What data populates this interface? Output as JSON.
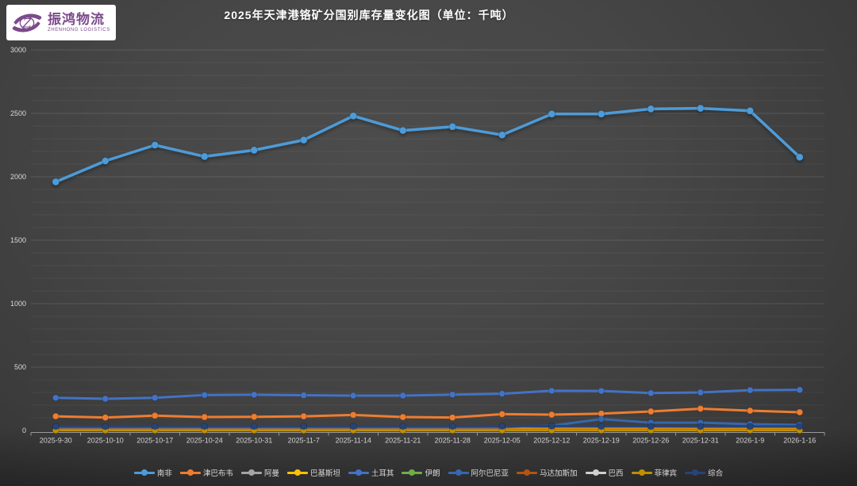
{
  "logo": {
    "brand_cn": "振鸿物流",
    "brand_en": "ZHENHONG LOGISTICS",
    "accent_color": "#7C4A8C"
  },
  "chart_data": {
    "type": "line",
    "title": "2025年天津港铬矿分国别库存量变化图（单位：千吨）",
    "xlabel": "",
    "ylabel": "",
    "ylim": [
      0,
      3000
    ],
    "y_major_step": 500,
    "y_minor_step": 100,
    "grid": true,
    "legend_position": "bottom",
    "categories": [
      "2025-9-30",
      "2025-10-10",
      "2025-10-17",
      "2025-10-24",
      "2025-10-31",
      "2025-11-7",
      "2025-11-14",
      "2025-11-21",
      "2025-11-28",
      "2025-12-05",
      "2025-12-12",
      "2025-12-19",
      "2025-12-26",
      "2025-12-31",
      "2026-1-9",
      "2026-1-16"
    ],
    "series": [
      {
        "name": "南非",
        "color": "#4E9BD8",
        "line_width": 3.5,
        "marker_r": 4.5,
        "shadow": true,
        "values": [
          1960,
          2125,
          2250,
          2160,
          2210,
          2290,
          2480,
          2365,
          2395,
          2330,
          2495,
          2495,
          2535,
          2540,
          2520,
          2155
        ]
      },
      {
        "name": "津巴布韦",
        "color": "#ED7D31",
        "line_width": 3,
        "marker_r": 4,
        "values": [
          112,
          102,
          117,
          106,
          108,
          112,
          123,
          106,
          102,
          129,
          125,
          133,
          150,
          172,
          156,
          144
        ]
      },
      {
        "name": "阿曼",
        "color": "#A5A5A5",
        "line_width": 2.5,
        "marker_r": 3.5,
        "values": [
          5,
          5,
          5,
          5,
          5,
          5,
          5,
          5,
          5,
          5,
          5,
          5,
          5,
          5,
          5,
          5
        ]
      },
      {
        "name": "巴基斯坦",
        "color": "#FFC000",
        "line_width": 2.5,
        "marker_r": 3.5,
        "values": [
          14,
          13,
          13,
          13,
          13,
          13,
          14,
          13,
          13,
          14,
          14,
          14,
          14,
          13,
          13,
          13
        ]
      },
      {
        "name": "土耳其",
        "color": "#4472C4",
        "line_width": 3,
        "marker_r": 4,
        "values": [
          258,
          250,
          258,
          280,
          282,
          278,
          275,
          275,
          283,
          290,
          313,
          312,
          295,
          300,
          318,
          320
        ]
      },
      {
        "name": "伊朗",
        "color": "#70AD47",
        "line_width": 2.5,
        "marker_r": 3.5,
        "values": [
          3,
          3,
          3,
          3,
          3,
          3,
          3,
          3,
          3,
          3,
          3,
          3,
          3,
          3,
          3,
          3
        ]
      },
      {
        "name": "阿尔巴尼亚",
        "color": "#3767AE",
        "line_width": 3,
        "marker_r": 4,
        "values": [
          26,
          26,
          26,
          26,
          26,
          26,
          26,
          26,
          26,
          26,
          38,
          90,
          62,
          62,
          50,
          44
        ]
      },
      {
        "name": "马达加斯加",
        "color": "#B35415",
        "line_width": 2.5,
        "marker_r": 3.5,
        "values": [
          8,
          8,
          8,
          8,
          8,
          8,
          8,
          8,
          8,
          8,
          8,
          8,
          8,
          8,
          8,
          8
        ]
      },
      {
        "name": "巴西",
        "color": "#CFCFCF",
        "line_width": 2,
        "marker_r": 3,
        "values": [
          2,
          2,
          2,
          2,
          2,
          2,
          2,
          2,
          2,
          2,
          2,
          2,
          2,
          2,
          2,
          2
        ]
      },
      {
        "name": "菲律宾",
        "color": "#BF8F00",
        "line_width": 2.5,
        "marker_r": 4,
        "values": [
          1,
          1,
          1,
          1,
          1,
          1,
          1,
          1,
          1,
          1,
          1,
          1,
          1,
          1,
          1,
          1
        ]
      },
      {
        "name": "综合",
        "color": "#264478",
        "line_width": 3,
        "marker_r": 4,
        "values": [
          33,
          32,
          33,
          33,
          33,
          33,
          33,
          33,
          33,
          34,
          35,
          33,
          32,
          32,
          32,
          32
        ]
      }
    ]
  }
}
